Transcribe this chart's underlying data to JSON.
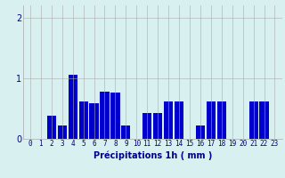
{
  "hours": [
    0,
    1,
    2,
    3,
    4,
    5,
    6,
    7,
    8,
    9,
    10,
    11,
    12,
    13,
    14,
    15,
    16,
    17,
    18,
    19,
    20,
    21,
    22,
    23
  ],
  "values": [
    0,
    0,
    0.38,
    0.22,
    1.05,
    0.62,
    0.58,
    0.78,
    0.76,
    0.22,
    0,
    0.42,
    0.42,
    0.62,
    0.62,
    0,
    0.22,
    0.62,
    0.62,
    0,
    0,
    0.62,
    0.62,
    0
  ],
  "bar_color": "#0000cc",
  "background_color": "#d8f0f0",
  "grid_color": "#aaaaaa",
  "axis_color": "#00008b",
  "xlabel": "Précipitations 1h ( mm )",
  "ylim": [
    0,
    2.2
  ],
  "yticks": [
    0,
    1,
    2
  ],
  "xlabel_fontsize": 7,
  "tick_fontsize": 5.5
}
